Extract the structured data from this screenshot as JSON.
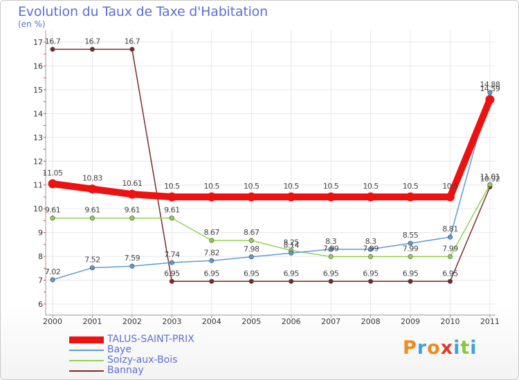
{
  "header": {
    "title": "Evolution du Taux de Taxe d'Habitation",
    "unit": "(en %)"
  },
  "logo": {
    "letters": [
      "P",
      "r",
      "o",
      "x",
      "i",
      "t",
      "i"
    ],
    "colors": [
      "#f08a1c",
      "#3aa4d8",
      "#f08a1c",
      "#e2392f",
      "#3aa4d8",
      "#8cc63f",
      "#3aa4d8"
    ]
  },
  "chart_data": {
    "type": "line",
    "title": "Evolution du Taux de Taxe d'Habitation",
    "ylabel": "(en %)",
    "xlabel": "",
    "categories": [
      "2000",
      "2001",
      "2002",
      "2003",
      "2004",
      "2005",
      "2006",
      "2007",
      "2008",
      "2009",
      "2010",
      "2011"
    ],
    "ylim": [
      6,
      17
    ],
    "yticks": [
      6,
      7,
      8,
      9,
      10,
      11,
      12,
      13,
      14,
      15,
      16,
      17
    ],
    "grid": true,
    "legend_position": "bottom-left",
    "series": [
      {
        "name": "TALUS-SAINT-PRIX",
        "color": "#ee1111",
        "values": [
          11.05,
          10.83,
          10.61,
          10.5,
          10.5,
          10.5,
          10.5,
          10.5,
          10.5,
          10.5,
          10.5,
          14.59
        ],
        "labels": [
          "11.05",
          "10.83",
          "10.61",
          "10.5",
          "10.5",
          "10.5",
          "10.5",
          "10.5",
          "10.5",
          "10.5",
          "10.5",
          "14.59"
        ]
      },
      {
        "name": "Baye",
        "color": "#5b9bd5",
        "values": [
          7.02,
          7.52,
          7.59,
          7.74,
          7.82,
          7.98,
          8.14,
          8.3,
          8.3,
          8.55,
          8.81,
          14.88
        ],
        "labels": [
          "7.02",
          "7.52",
          "7.59",
          "7.74",
          "7.82",
          "7.98",
          "8.14",
          "8.3",
          "8.3",
          "8.55",
          "8.81",
          "14.88"
        ]
      },
      {
        "name": "Soizy-aux-Bois",
        "color": "#8fd14f",
        "values": [
          9.61,
          9.61,
          9.61,
          9.61,
          8.67,
          8.67,
          8.25,
          7.99,
          7.99,
          7.99,
          7.99,
          11.01
        ],
        "labels": [
          "9.61",
          "9.61",
          "9.61",
          "9.61",
          "8.67",
          "8.67",
          "8.25",
          "7.99",
          "7.99",
          "7.99",
          "7.99",
          "11.01"
        ]
      },
      {
        "name": "Bannay",
        "color": "#7b2a2a",
        "values": [
          16.7,
          16.7,
          16.7,
          6.95,
          6.95,
          6.95,
          6.95,
          6.95,
          6.95,
          6.95,
          6.95,
          10.92
        ],
        "labels": [
          "16.7",
          "16.7",
          "16.7",
          "6.95",
          "6.95",
          "6.95",
          "6.95",
          "6.95",
          "6.95",
          "6.95",
          "6.95",
          "10.92"
        ]
      }
    ]
  }
}
